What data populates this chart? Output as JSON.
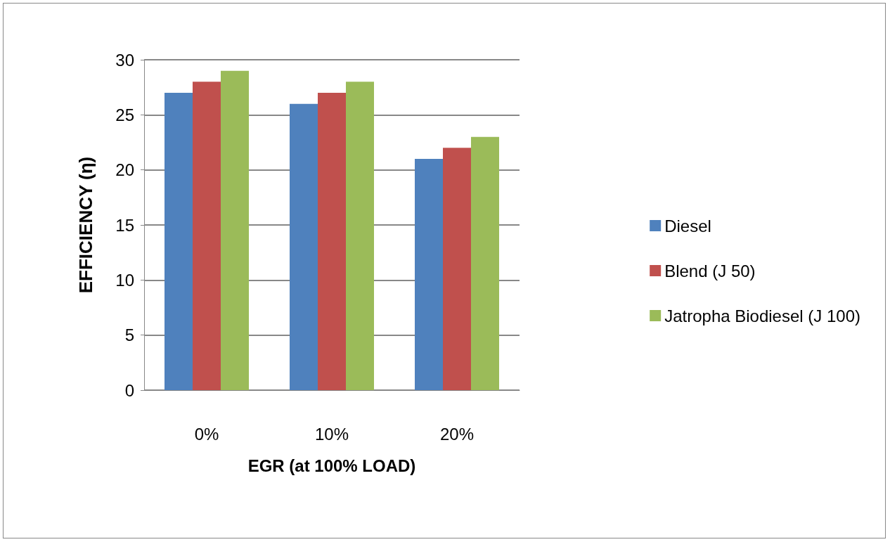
{
  "chart_data": {
    "type": "bar",
    "xlabel": "EGR (at 100% LOAD)",
    "ylabel": "EFFICIENCY (η)",
    "categories": [
      "0%",
      "10%",
      "20%"
    ],
    "series": [
      {
        "name": "Diesel",
        "color": "#4f81bd",
        "values": [
          27,
          26,
          21
        ]
      },
      {
        "name": "Blend (J 50)",
        "color": "#c0504d",
        "values": [
          28,
          27,
          22
        ]
      },
      {
        "name": "Jatropha Biodiesel (J 100)",
        "color": "#9bbb59",
        "values": [
          29,
          28,
          23
        ]
      }
    ],
    "ylim": [
      0,
      30
    ],
    "yticks": [
      0,
      5,
      10,
      15,
      20,
      25,
      30
    ],
    "grid": "y",
    "legend": "right"
  }
}
